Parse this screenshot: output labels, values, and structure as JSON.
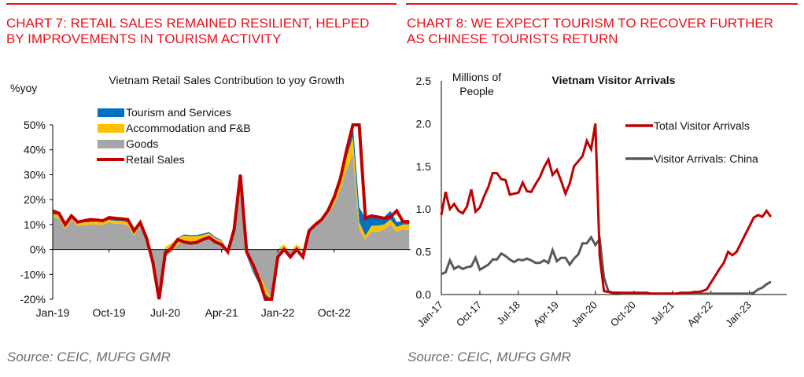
{
  "panels": [
    {
      "heading_line1": "CHART 7: RETAIL SALES REMAINED RESILIENT, HELPED",
      "heading_line2": "BY IMPROVEMENTS IN TOURISM ACTIVITY",
      "source": "Source: CEIC, MUFG GMR"
    },
    {
      "heading_line1": "CHART 8: WE EXPECT TOURISM TO RECOVER FURTHER",
      "heading_line2": "AS CHINESE TOURISTS RETURN",
      "source": "Source: CEIC, MUFG GMR"
    }
  ],
  "colors": {
    "heading": "#e8101c",
    "tourism": "#0070c0",
    "accommodation": "#ffc000",
    "goods": "#a6a6a6",
    "retail": "#c00000",
    "china": "#595959"
  },
  "chart_data": [
    {
      "type": "area",
      "title": "Vietnam Retail Sales Contribution to yoy Growth",
      "ylabel": "%yoy",
      "xlabel": "",
      "ylim": [
        -20,
        50
      ],
      "yticks": [
        "50%",
        "40%",
        "30%",
        "20%",
        "10%",
        "0%",
        "-10%",
        "-20%"
      ],
      "ytick_values": [
        50,
        40,
        30,
        20,
        10,
        0,
        -10,
        -20
      ],
      "xtick_labels": [
        "Jan-19",
        "Oct-19",
        "Jul-20",
        "Apr-21",
        "Jan-22",
        "Oct-22"
      ],
      "xtick_month_index": [
        0,
        9,
        18,
        27,
        36,
        45
      ],
      "legend": [
        "Tourism and Services",
        "Accommodation and F&B",
        "Goods",
        "Retail Sales"
      ],
      "legend_position": "top-left",
      "x_start": "Jan-19",
      "x_end": "May-23",
      "series": [
        {
          "name": "Goods",
          "kind": "stacked-area",
          "values": [
            13,
            12.5,
            8,
            12,
            9.5,
            9.8,
            10,
            10,
            9.8,
            10.8,
            10.3,
            10.2,
            9.8,
            5.5,
            9.5,
            4,
            -3,
            -18,
            -3,
            -1,
            2,
            3.5,
            2.8,
            2.8,
            3.8,
            4.5,
            3,
            2.5,
            -1,
            7,
            22,
            0,
            -5,
            -10,
            -15,
            -20,
            -2,
            1,
            -2,
            1,
            -1,
            7,
            10,
            11,
            14,
            18,
            24,
            32,
            38,
            8,
            4,
            7,
            7,
            8,
            10,
            7,
            8,
            8
          ]
        },
        {
          "name": "Accommodation and F&B",
          "kind": "stacked-area",
          "values": [
            1,
            1.5,
            1.2,
            1.2,
            1,
            1,
            1,
            1.2,
            1.2,
            1,
            1.2,
            1.2,
            1.2,
            1,
            1,
            1,
            0,
            4,
            4,
            3.5,
            2.5,
            2,
            2.5,
            2.5,
            2,
            2,
            1.5,
            1,
            0.5,
            0.5,
            2,
            -2,
            -3,
            -3,
            -3,
            -1,
            2,
            1,
            1,
            1,
            1,
            0.8,
            0.8,
            1,
            1.5,
            2,
            3,
            5,
            7,
            3,
            1.5,
            2.5,
            2.5,
            2,
            2,
            2,
            2,
            2
          ]
        },
        {
          "name": "Tourism and Services",
          "kind": "stacked-area",
          "values": [
            1,
            1,
            0.5,
            0.5,
            0.5,
            0.5,
            0.5,
            0.5,
            1,
            1,
            1,
            1,
            1,
            1,
            0.5,
            0.3,
            0,
            -1,
            0,
            0,
            0.2,
            0.5,
            0.5,
            0.5,
            0.5,
            0.5,
            0.5,
            0.3,
            0,
            0,
            0.5,
            -0.5,
            -1,
            -1,
            -1.5,
            -1,
            -0.5,
            0,
            0,
            0,
            0,
            0,
            0,
            0,
            0.5,
            1,
            1.5,
            2.5,
            5,
            6,
            7,
            4,
            3.5,
            3,
            3.5,
            2,
            1.5,
            1.5
          ]
        },
        {
          "name": "Retail Sales",
          "kind": "line",
          "values": [
            15.5,
            14.5,
            10,
            13.5,
            11,
            11.5,
            12,
            11.8,
            11.5,
            12.8,
            12.5,
            12.3,
            12,
            7.5,
            10.8,
            4.5,
            -5,
            -20,
            -1.5,
            0.5,
            4,
            3,
            2.5,
            2.8,
            4,
            4.8,
            3,
            2,
            -1,
            8,
            30,
            -1,
            -6,
            -12,
            -20,
            -22,
            -3,
            0,
            -3,
            0,
            -3,
            7.5,
            10,
            12,
            15.5,
            21,
            28.5,
            40,
            50,
            51,
            12.5,
            13.5,
            13,
            12.5,
            13,
            15.5,
            11.2,
            11.2
          ]
        }
      ]
    },
    {
      "type": "line",
      "title": "Vietnam Visitor Arrivals",
      "ylabel": "Millions of People",
      "xlabel": "",
      "ylim": [
        0,
        2.5
      ],
      "yticks": [
        "2.5",
        "2.0",
        "1.5",
        "1.0",
        "0.5",
        "0.0"
      ],
      "ytick_values": [
        2.5,
        2.0,
        1.5,
        1.0,
        0.5,
        0.0
      ],
      "xtick_labels": [
        "Jan-17",
        "Oct-17",
        "Jul-18",
        "Apr-19",
        "Jan-20",
        "Oct-20",
        "Jul-21",
        "Apr-22",
        "Jan-23"
      ],
      "xtick_month_index": [
        0,
        9,
        18,
        27,
        36,
        45,
        54,
        63,
        72
      ],
      "legend": [
        "Total Visitor Arrivals",
        "Visitor Arrivals: China"
      ],
      "legend_position": "right",
      "x_start": "Jan-17",
      "x_end": "May-23",
      "series": [
        {
          "name": "Total Visitor Arrivals",
          "values": [
            0.93,
            1.2,
            1.0,
            1.06,
            0.98,
            0.95,
            1.03,
            1.23,
            0.97,
            1.02,
            1.15,
            1.26,
            1.42,
            1.42,
            1.35,
            1.34,
            1.17,
            1.18,
            1.19,
            1.31,
            1.21,
            1.2,
            1.29,
            1.37,
            1.49,
            1.58,
            1.4,
            1.46,
            1.33,
            1.18,
            1.3,
            1.5,
            1.56,
            1.62,
            1.8,
            1.7,
            2.0,
            0.45,
            0.04,
            0.03,
            0.02,
            0.02,
            0.02,
            0.02,
            0.02,
            0.02,
            0.02,
            0.02,
            0.02,
            0.01,
            0.01,
            0.01,
            0.01,
            0.01,
            0.01,
            0.01,
            0.02,
            0.02,
            0.02,
            0.03,
            0.03,
            0.04,
            0.06,
            0.14,
            0.22,
            0.3,
            0.37,
            0.5,
            0.46,
            0.5,
            0.6,
            0.7,
            0.8,
            0.9,
            0.93,
            0.91,
            0.98,
            0.91
          ]
        },
        {
          "name": "Visitor Arrivals: China",
          "values": [
            0.24,
            0.26,
            0.4,
            0.3,
            0.33,
            0.3,
            0.32,
            0.33,
            0.43,
            0.29,
            0.32,
            0.35,
            0.41,
            0.41,
            0.48,
            0.45,
            0.41,
            0.38,
            0.41,
            0.4,
            0.42,
            0.4,
            0.37,
            0.37,
            0.4,
            0.37,
            0.52,
            0.39,
            0.43,
            0.43,
            0.35,
            0.42,
            0.47,
            0.6,
            0.6,
            0.67,
            0.58,
            0.65,
            0.2,
            0.04,
            0.02,
            0.02,
            0.01,
            0.01,
            0.01,
            0.01,
            0.01,
            0.01,
            0.01,
            0.01,
            0.01,
            0.01,
            0.01,
            0.01,
            0.01,
            0.01,
            0.01,
            0.01,
            0.01,
            0.01,
            0.01,
            0.01,
            0.01,
            0.01,
            0.01,
            0.01,
            0.01,
            0.01,
            0.01,
            0.01,
            0.01,
            0.01,
            0.01,
            0.02,
            0.06,
            0.08,
            0.12,
            0.15
          ]
        }
      ]
    }
  ]
}
